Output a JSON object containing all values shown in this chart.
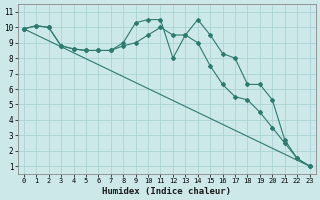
{
  "xlabel": "Humidex (Indice chaleur)",
  "ylabel": "",
  "bg_color": "#cce8e8",
  "grid_color": "#aad4d4",
  "line_color": "#2d7a6e",
  "xlim": [
    -0.5,
    23.5
  ],
  "ylim": [
    0.5,
    11.5
  ],
  "xticks": [
    0,
    1,
    2,
    3,
    4,
    5,
    6,
    7,
    8,
    9,
    10,
    11,
    12,
    13,
    14,
    15,
    16,
    17,
    18,
    19,
    20,
    21,
    22,
    23
  ],
  "yticks": [
    1,
    2,
    3,
    4,
    5,
    6,
    7,
    8,
    9,
    10,
    11
  ],
  "line1_x": [
    0,
    1,
    2,
    3,
    4,
    5,
    6,
    7,
    8,
    9,
    10,
    11,
    12,
    13,
    14,
    15,
    16,
    17,
    18,
    19,
    20,
    21,
    22,
    23
  ],
  "line1_y": [
    9.9,
    10.1,
    10.0,
    8.8,
    8.6,
    8.5,
    8.5,
    8.5,
    9.0,
    10.3,
    10.5,
    10.5,
    8.0,
    9.5,
    10.5,
    9.5,
    8.3,
    8.0,
    6.3,
    6.3,
    5.3,
    2.7,
    1.5,
    1.0
  ],
  "line2_x": [
    0,
    1,
    2,
    3,
    4,
    5,
    6,
    7,
    8,
    9,
    10,
    11,
    12,
    13,
    14,
    15,
    16,
    17,
    18,
    19,
    20,
    21,
    22,
    23
  ],
  "line2_y": [
    9.9,
    10.1,
    10.0,
    8.8,
    8.6,
    8.5,
    8.5,
    8.5,
    8.8,
    9.0,
    9.5,
    10.0,
    9.5,
    9.5,
    9.0,
    7.5,
    6.3,
    5.5,
    5.3,
    4.5,
    3.5,
    2.5,
    1.5,
    1.0
  ],
  "line3_x": [
    0,
    23
  ],
  "line3_y": [
    9.9,
    1.0
  ],
  "tick_fontsize": 5.0,
  "xlabel_fontsize": 6.5,
  "marker_size": 2.0,
  "line_width": 0.8
}
